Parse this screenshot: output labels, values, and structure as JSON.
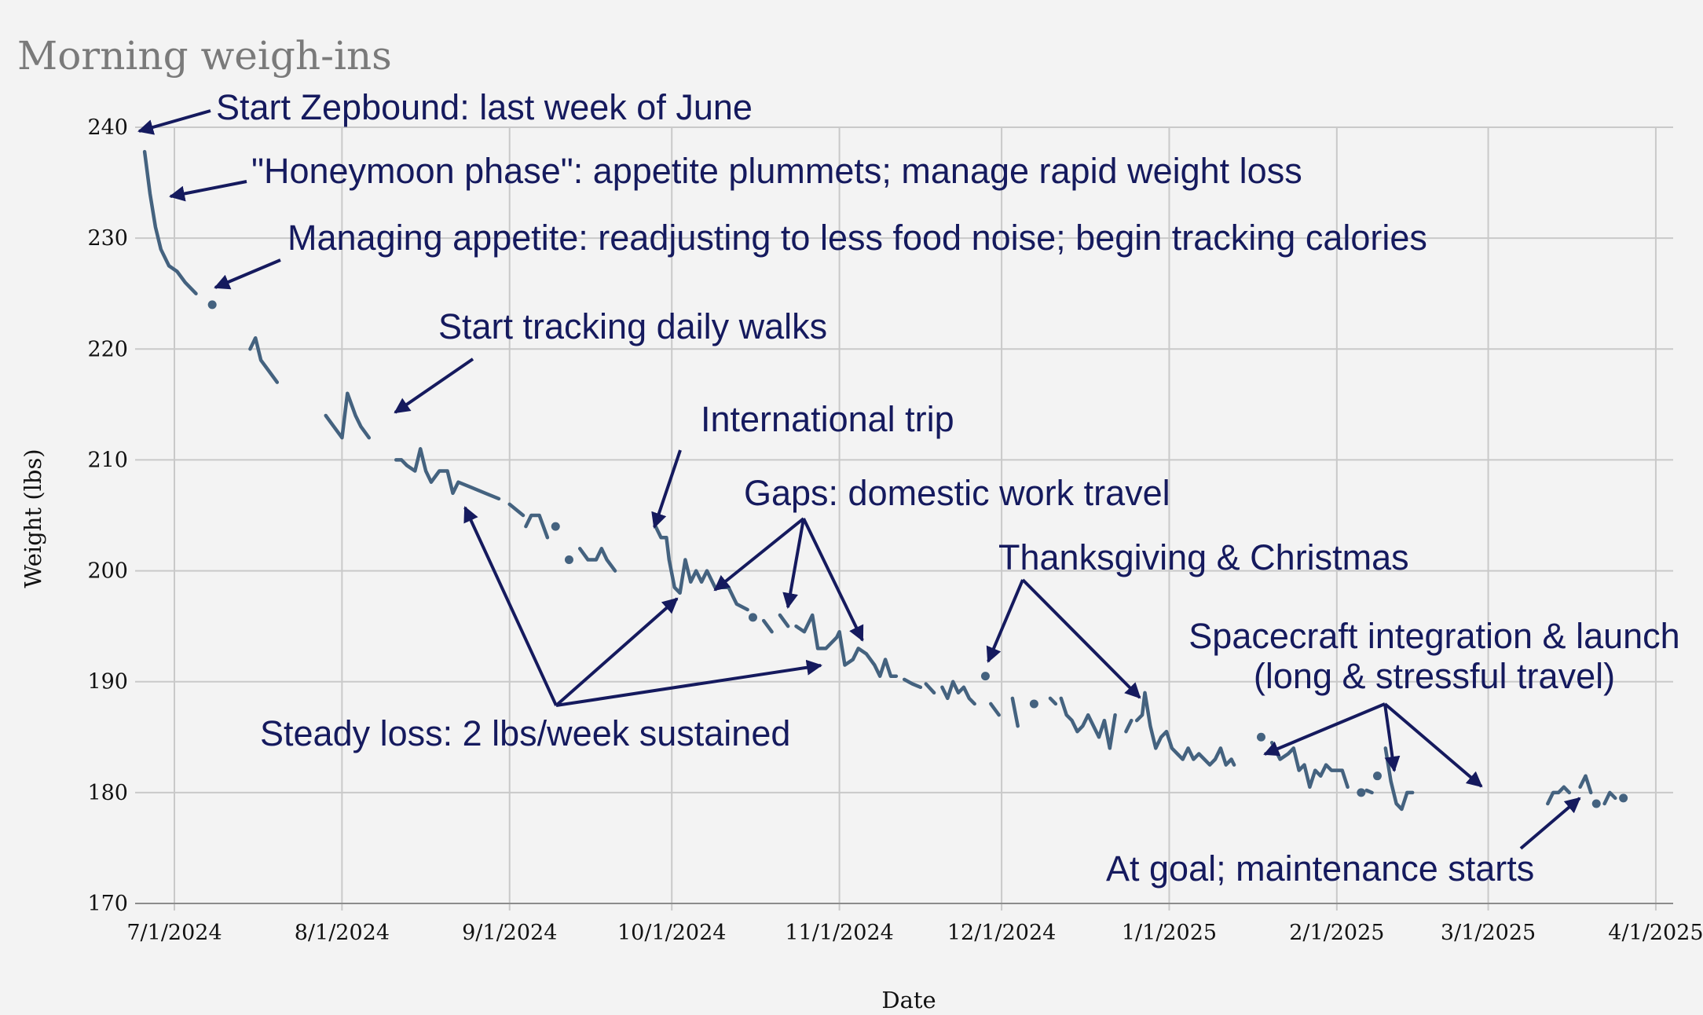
{
  "chart_data": {
    "type": "line",
    "title": "Morning weigh-ins",
    "xlabel": "Date",
    "ylabel": "Weight (lbs)",
    "ylim": [
      170,
      240
    ],
    "yticks": [
      170,
      180,
      190,
      200,
      210,
      220,
      230,
      240
    ],
    "xlim_days": [
      -7,
      276
    ],
    "xticks": [
      {
        "label": "7/1/2024",
        "day": 0
      },
      {
        "label": "8/1/2024",
        "day": 31
      },
      {
        "label": "9/1/2024",
        "day": 62
      },
      {
        "label": "10/1/2024",
        "day": 92
      },
      {
        "label": "11/1/2024",
        "day": 123
      },
      {
        "label": "12/1/2024",
        "day": 153
      },
      {
        "label": "1/1/2025",
        "day": 184
      },
      {
        "label": "2/1/2025",
        "day": 215
      },
      {
        "label": "3/1/2025",
        "day": 243
      },
      {
        "label": "4/1/2025",
        "day": 274
      }
    ],
    "grid": true,
    "segments": [
      [
        [
          -5.5,
          237.8
        ],
        [
          -4.5,
          234
        ],
        [
          -3.5,
          231
        ],
        [
          -2.5,
          229
        ],
        [
          -1,
          227.5
        ],
        [
          0.5,
          227
        ],
        [
          2,
          226
        ],
        [
          4,
          225
        ]
      ],
      [
        [
          7,
          224
        ]
      ],
      [
        [
          14,
          220
        ],
        [
          15,
          221
        ],
        [
          16,
          219
        ],
        [
          17.5,
          218
        ],
        [
          19,
          217
        ]
      ],
      [
        [
          28,
          214
        ],
        [
          29.5,
          213
        ],
        [
          31,
          212
        ],
        [
          32,
          216
        ],
        [
          33.5,
          214
        ],
        [
          34.5,
          213
        ],
        [
          36,
          212
        ]
      ],
      [
        [
          41,
          210
        ],
        [
          42,
          210
        ],
        [
          43,
          209.5
        ],
        [
          44.5,
          209
        ],
        [
          45.5,
          211
        ],
        [
          46.5,
          209
        ],
        [
          47.5,
          208
        ],
        [
          49,
          209
        ],
        [
          50.5,
          209
        ],
        [
          51.5,
          207
        ],
        [
          52.5,
          208
        ],
        [
          55,
          207.5
        ],
        [
          57.5,
          207
        ],
        [
          60,
          206.5
        ]
      ],
      [
        [
          62,
          206
        ],
        [
          64.5,
          205
        ]
      ],
      [
        [
          65,
          204
        ],
        [
          66,
          205
        ],
        [
          67.5,
          205
        ],
        [
          69,
          203
        ]
      ],
      [
        [
          70.5,
          204
        ]
      ],
      [
        [
          73,
          201
        ]
      ],
      [
        [
          75,
          202
        ],
        [
          76.5,
          201
        ],
        [
          78,
          201
        ],
        [
          79,
          202
        ],
        [
          80,
          201
        ],
        [
          81.5,
          200
        ]
      ],
      [
        [
          89,
          204
        ],
        [
          90,
          203
        ],
        [
          91,
          203
        ],
        [
          91.5,
          201
        ],
        [
          92.5,
          198.5
        ],
        [
          93.5,
          198
        ],
        [
          94.5,
          201
        ],
        [
          95.5,
          199
        ],
        [
          96.5,
          200
        ],
        [
          97.5,
          199
        ],
        [
          98.5,
          200
        ],
        [
          99.5,
          199
        ],
        [
          100,
          198.5
        ]
      ],
      [
        [
          101,
          198.5
        ],
        [
          102.5,
          198.5
        ],
        [
          104,
          197
        ],
        [
          106,
          196.5
        ]
      ],
      [
        [
          107,
          195.8
        ]
      ],
      [
        [
          109,
          195.5
        ],
        [
          110.5,
          194.5
        ]
      ],
      [
        [
          112,
          196
        ],
        [
          113.5,
          195
        ]
      ],
      [
        [
          115,
          195
        ],
        [
          116.5,
          194.5
        ],
        [
          118,
          196
        ],
        [
          119,
          193
        ],
        [
          120.5,
          193
        ],
        [
          122.5,
          194
        ],
        [
          123,
          194.5
        ],
        [
          124,
          191.5
        ],
        [
          125.5,
          192
        ],
        [
          126.5,
          193
        ],
        [
          128,
          192.5
        ],
        [
          129.5,
          191.5
        ],
        [
          130.5,
          190.5
        ],
        [
          131.5,
          192
        ],
        [
          132.5,
          190.5
        ],
        [
          133.5,
          190.5
        ]
      ],
      [
        [
          135,
          190.2
        ],
        [
          136.5,
          189.8
        ],
        [
          138,
          189.5
        ]
      ],
      [
        [
          139,
          189.8
        ],
        [
          140.5,
          189
        ]
      ],
      [
        [
          142,
          189.5
        ],
        [
          143,
          188.5
        ],
        [
          144,
          190
        ],
        [
          145,
          189
        ],
        [
          146,
          189.5
        ],
        [
          147,
          188.5
        ],
        [
          148,
          188
        ]
      ],
      [
        [
          150,
          190.5
        ]
      ],
      [
        [
          151,
          188
        ],
        [
          152.5,
          187
        ]
      ],
      [
        [
          155,
          188.5
        ],
        [
          156,
          186
        ]
      ],
      [
        [
          159,
          188
        ]
      ],
      [
        [
          162,
          188.5
        ],
        [
          163,
          188
        ]
      ],
      [
        [
          164,
          188.5
        ],
        [
          165,
          187
        ],
        [
          166,
          186.5
        ],
        [
          167,
          185.5
        ],
        [
          168,
          186
        ],
        [
          169,
          187
        ],
        [
          170,
          186
        ],
        [
          171,
          185
        ],
        [
          172,
          186.5
        ],
        [
          173,
          184
        ],
        [
          174,
          187
        ]
      ],
      [
        [
          176,
          185.5
        ],
        [
          177,
          186.5
        ]
      ],
      [
        [
          178,
          186.5
        ],
        [
          179,
          187
        ],
        [
          179.5,
          189
        ],
        [
          180.5,
          186
        ],
        [
          181.5,
          184
        ],
        [
          182.5,
          185
        ],
        [
          183.5,
          185.5
        ],
        [
          184.5,
          184
        ],
        [
          185.5,
          183.5
        ],
        [
          186.5,
          183
        ],
        [
          187.5,
          184
        ],
        [
          188.5,
          183
        ],
        [
          189.5,
          183.5
        ],
        [
          190.5,
          183
        ],
        [
          191.5,
          182.5
        ],
        [
          192.5,
          183
        ],
        [
          193.5,
          184
        ],
        [
          194.5,
          182.5
        ],
        [
          195.5,
          183
        ],
        [
          196,
          182.5
        ]
      ],
      [
        [
          201,
          185
        ]
      ],
      [
        [
          203,
          184.5
        ],
        [
          204.5,
          183
        ],
        [
          206,
          183.5
        ],
        [
          207,
          184
        ],
        [
          208,
          182
        ],
        [
          209,
          182.5
        ],
        [
          210,
          180.5
        ],
        [
          211,
          182
        ],
        [
          212,
          181.5
        ],
        [
          213,
          182.5
        ],
        [
          214,
          182
        ],
        [
          215,
          182
        ],
        [
          216,
          182
        ],
        [
          217,
          180.5
        ]
      ],
      [
        [
          219.5,
          180
        ]
      ],
      [
        [
          220.5,
          180.2
        ],
        [
          221.5,
          180
        ]
      ],
      [
        [
          222.5,
          181.5
        ]
      ],
      [
        [
          224,
          184
        ],
        [
          225,
          181
        ],
        [
          226,
          179
        ],
        [
          227,
          178.5
        ],
        [
          228,
          180
        ],
        [
          229,
          180
        ]
      ],
      [
        [
          254,
          179
        ],
        [
          255,
          180
        ],
        [
          256,
          180
        ],
        [
          257,
          180.5
        ],
        [
          258,
          180
        ]
      ],
      [
        [
          260,
          180.5
        ],
        [
          261,
          181.5
        ],
        [
          262,
          180
        ]
      ],
      [
        [
          263,
          179
        ]
      ],
      [
        [
          264.5,
          179
        ],
        [
          265.5,
          180
        ],
        [
          266.5,
          179.5
        ]
      ],
      [
        [
          268,
          179.5
        ]
      ]
    ],
    "annotations": [
      {
        "text": "Start Zepbound: last week of June"
      },
      {
        "text": "\"Honeymoon phase\": appetite plummets; manage rapid weight loss"
      },
      {
        "text": "Managing appetite: readjusting to less food noise; begin tracking calories"
      },
      {
        "text": "Start tracking daily walks"
      },
      {
        "text": "International trip"
      },
      {
        "text": "Gaps: domestic work travel"
      },
      {
        "text": "Thanksgiving & Christmas"
      },
      {
        "text": "Spacecraft integration & launch"
      },
      {
        "text": "(long & stressful travel)"
      },
      {
        "text": "Steady loss: 2 lbs/week sustained"
      },
      {
        "text": "At goal; maintenance starts"
      }
    ]
  }
}
